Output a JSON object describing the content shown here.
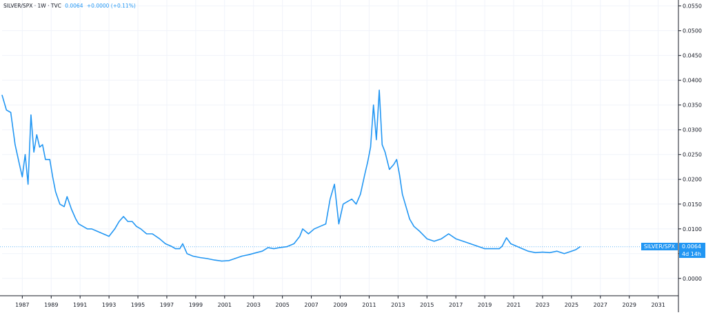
{
  "legend": {
    "symbol": "SILVER/SPX",
    "interval": "1W",
    "source": "TVC",
    "last": "0.0064",
    "change": "+0.0000 (+0.11%)"
  },
  "price_badge": {
    "label": "SILVER/SPX",
    "value": "0.0064",
    "countdown": "4d 14h"
  },
  "colors": {
    "line": "#2196f3",
    "grid": "#f0f3fa",
    "axis_text": "#131722",
    "axis_line": "#131722"
  },
  "chart_data": {
    "type": "line",
    "series": [
      {
        "name": "SILVER/SPX",
        "x": [
          1985.6,
          1985.9,
          1986.2,
          1986.5,
          1986.8,
          1987.0,
          1987.2,
          1987.4,
          1987.6,
          1987.8,
          1988.0,
          1988.2,
          1988.4,
          1988.6,
          1988.9,
          1989.1,
          1989.3,
          1989.6,
          1989.9,
          1990.1,
          1990.4,
          1990.7,
          1990.9,
          1991.2,
          1991.5,
          1991.8,
          1992.2,
          1992.6,
          1993.0,
          1993.4,
          1993.7,
          1994.0,
          1994.3,
          1994.6,
          1994.9,
          1995.2,
          1995.6,
          1996.0,
          1996.5,
          1996.9,
          1997.3,
          1997.6,
          1997.9,
          1998.1,
          1998.4,
          1998.8,
          1999.3,
          1999.8,
          2000.3,
          2000.8,
          2001.3,
          2001.7,
          2002.2,
          2002.7,
          2003.2,
          2003.6,
          2004.0,
          2004.4,
          2004.8,
          2005.3,
          2005.8,
          2006.2,
          2006.4,
          2006.8,
          2007.2,
          2007.6,
          2008.0,
          2008.3,
          2008.6,
          2008.9,
          2009.2,
          2009.5,
          2009.8,
          2010.1,
          2010.4,
          2010.7,
          2010.9,
          2011.1,
          2011.3,
          2011.5,
          2011.7,
          2011.9,
          2012.1,
          2012.4,
          2012.7,
          2012.9,
          2013.1,
          2013.3,
          2013.5,
          2013.8,
          2014.1,
          2014.5,
          2015.0,
          2015.5,
          2016.0,
          2016.5,
          2017.0,
          2017.5,
          2018.0,
          2018.5,
          2019.0,
          2019.5,
          2020.0,
          2020.2,
          2020.5,
          2020.8,
          2021.2,
          2021.6,
          2022.0,
          2022.5,
          2023.0,
          2023.5,
          2024.0,
          2024.5,
          2025.0,
          2025.3,
          2025.6
        ],
        "y": [
          0.037,
          0.034,
          0.0335,
          0.027,
          0.023,
          0.0205,
          0.025,
          0.019,
          0.033,
          0.0255,
          0.029,
          0.0265,
          0.027,
          0.024,
          0.024,
          0.0205,
          0.0175,
          0.015,
          0.0145,
          0.0165,
          0.014,
          0.012,
          0.011,
          0.0105,
          0.01,
          0.01,
          0.0095,
          0.009,
          0.0085,
          0.01,
          0.0115,
          0.0125,
          0.0115,
          0.0115,
          0.0105,
          0.01,
          0.009,
          0.009,
          0.008,
          0.007,
          0.0065,
          0.006,
          0.006,
          0.007,
          0.005,
          0.0045,
          0.0042,
          0.004,
          0.0037,
          0.0035,
          0.0036,
          0.004,
          0.0045,
          0.0048,
          0.0052,
          0.0055,
          0.0062,
          0.006,
          0.0062,
          0.0064,
          0.007,
          0.0085,
          0.01,
          0.009,
          0.01,
          0.0105,
          0.011,
          0.016,
          0.019,
          0.011,
          0.015,
          0.0155,
          0.016,
          0.015,
          0.017,
          0.021,
          0.0235,
          0.0265,
          0.035,
          0.028,
          0.038,
          0.027,
          0.0255,
          0.022,
          0.023,
          0.024,
          0.021,
          0.017,
          0.015,
          0.012,
          0.0105,
          0.0095,
          0.008,
          0.0075,
          0.008,
          0.009,
          0.008,
          0.0075,
          0.007,
          0.0065,
          0.006,
          0.006,
          0.006,
          0.0065,
          0.0082,
          0.007,
          0.0065,
          0.006,
          0.0055,
          0.0052,
          0.0053,
          0.0052,
          0.0055,
          0.005,
          0.0055,
          0.0058,
          0.0064
        ]
      }
    ],
    "x_ticks": [
      "1987",
      "1989",
      "1991",
      "1993",
      "1995",
      "1997",
      "1999",
      "2001",
      "2003",
      "2005",
      "2007",
      "2009",
      "2011",
      "2013",
      "2015",
      "2017",
      "2019",
      "2021",
      "2023",
      "2025",
      "2027",
      "2029",
      "2031"
    ],
    "y_ticks": [
      "0.0000",
      "0.0050",
      "0.0100",
      "0.0150",
      "0.0200",
      "0.0250",
      "0.0300",
      "0.0350",
      "0.0400",
      "0.0450",
      "0.0500",
      "0.0550"
    ],
    "xlim": [
      1985.6,
      2032.4
    ],
    "ylim": [
      -0.0035,
      0.0562
    ],
    "last_value": 0.0064,
    "grid": true,
    "y_axis_position": "right"
  }
}
